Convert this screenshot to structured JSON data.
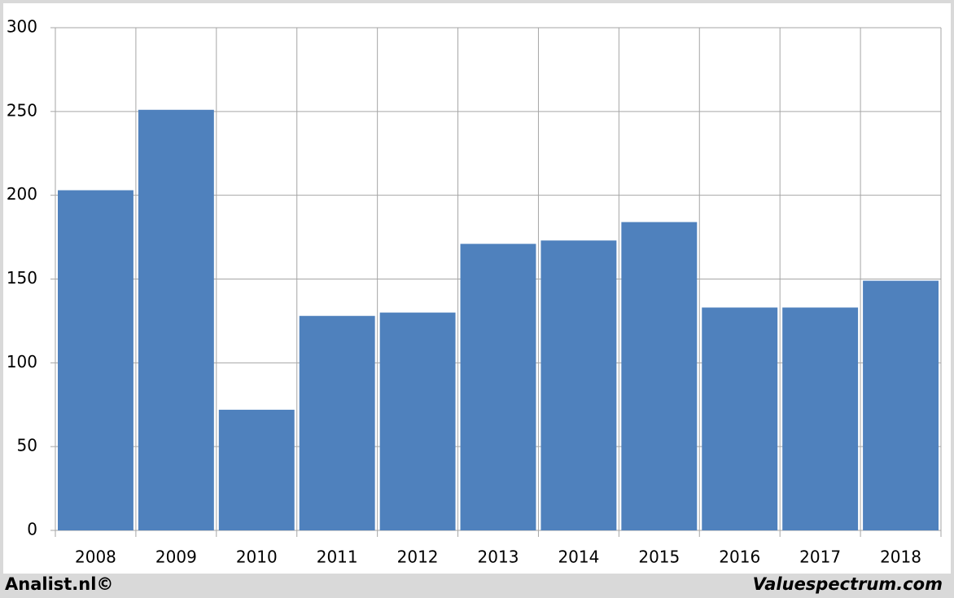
{
  "chart_data": {
    "type": "bar",
    "categories": [
      "2008",
      "2009",
      "2010",
      "2011",
      "2012",
      "2013",
      "2014",
      "2015",
      "2016",
      "2017",
      "2018"
    ],
    "values": [
      203,
      251,
      72,
      128,
      130,
      171,
      173,
      184,
      133,
      133,
      149
    ],
    "color": "#4f81bd",
    "ylim": [
      0,
      300
    ],
    "yticks": [
      0,
      50,
      100,
      150,
      200,
      250,
      300
    ],
    "grid": true,
    "footer_left": "Analist.nl©",
    "footer_right": "Valuespectrum.com"
  }
}
